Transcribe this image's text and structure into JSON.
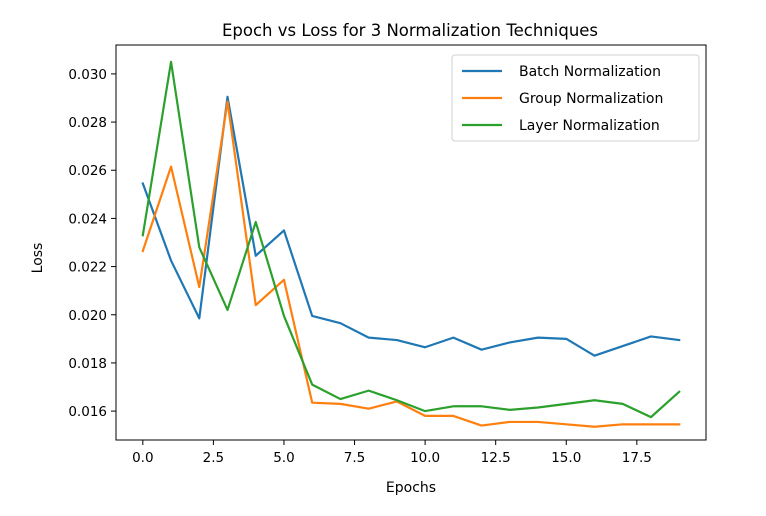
{
  "chart_data": {
    "type": "line",
    "title": "Epoch vs Loss for 3 Normalization Techniques",
    "xlabel": "Epochs",
    "ylabel": "Loss",
    "xlim": [
      -0.95,
      19.95
    ],
    "ylim": [
      0.0148,
      0.0312
    ],
    "xticks": [
      0.0,
      2.5,
      5.0,
      7.5,
      10.0,
      12.5,
      15.0,
      17.5
    ],
    "xtick_labels": [
      "0.0",
      "2.5",
      "5.0",
      "7.5",
      "10.0",
      "12.5",
      "15.0",
      "17.5"
    ],
    "yticks": [
      0.016,
      0.018,
      0.02,
      0.022,
      0.024,
      0.026,
      0.028,
      0.03
    ],
    "ytick_labels": [
      "0.016",
      "0.018",
      "0.020",
      "0.022",
      "0.024",
      "0.026",
      "0.028",
      "0.030"
    ],
    "grid": false,
    "legend_position": "top-right",
    "x": [
      0,
      1,
      2,
      3,
      4,
      5,
      6,
      7,
      8,
      9,
      10,
      11,
      12,
      13,
      14,
      15,
      16,
      17,
      18,
      19
    ],
    "series": [
      {
        "name": "Batch Normalization",
        "color": "#1f77b4",
        "values": [
          0.02545,
          0.02225,
          0.01985,
          0.02905,
          0.02245,
          0.0235,
          0.01995,
          0.01965,
          0.01905,
          0.01895,
          0.01865,
          0.01905,
          0.01855,
          0.01885,
          0.01905,
          0.019,
          0.0183,
          0.0187,
          0.0191,
          0.01895
        ]
      },
      {
        "name": "Group Normalization",
        "color": "#ff7f0e",
        "values": [
          0.02265,
          0.02615,
          0.02115,
          0.02885,
          0.0204,
          0.02145,
          0.01635,
          0.0163,
          0.0161,
          0.0164,
          0.0158,
          0.0158,
          0.0154,
          0.01555,
          0.01555,
          0.01545,
          0.01535,
          0.01545,
          0.01545,
          0.01545
        ]
      },
      {
        "name": "Layer Normalization",
        "color": "#2ca02c",
        "values": [
          0.0233,
          0.0305,
          0.0228,
          0.0202,
          0.02385,
          0.01995,
          0.0171,
          0.0165,
          0.01685,
          0.01645,
          0.016,
          0.0162,
          0.0162,
          0.01605,
          0.01615,
          0.0163,
          0.01645,
          0.0163,
          0.01575,
          0.0168
        ]
      }
    ]
  }
}
